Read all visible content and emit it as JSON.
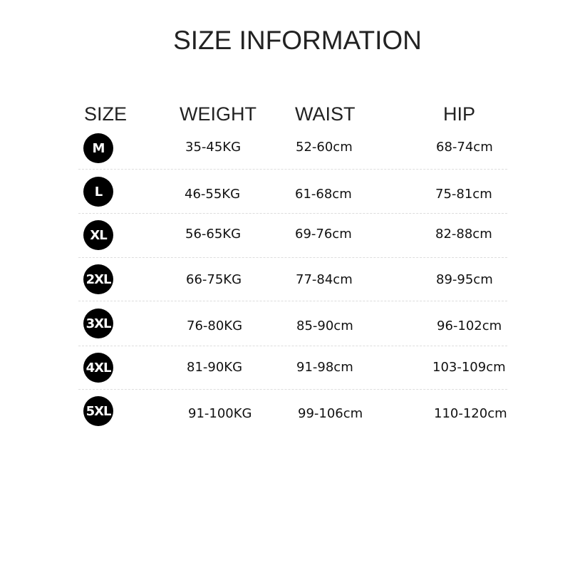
{
  "title": "SIZE INFORMATION",
  "headers": {
    "size": "SIZE",
    "weight": "WEIGHT",
    "waist": "WAIST",
    "hip": "HIP"
  },
  "rows": [
    {
      "size": "M",
      "weight": "35-45KG",
      "waist": "52-60cm",
      "hip": "68-74cm"
    },
    {
      "size": "L",
      "weight": "46-55KG",
      "waist": "61-68cm",
      "hip": "75-81cm"
    },
    {
      "size": "XL",
      "weight": "56-65KG",
      "waist": "69-76cm",
      "hip": "82-88cm"
    },
    {
      "size": "2XL",
      "weight": "66-75KG",
      "waist": "77-84cm",
      "hip": "89-95cm"
    },
    {
      "size": "3XL",
      "weight": "76-80KG",
      "waist": "85-90cm",
      "hip": "96-102cm"
    },
    {
      "size": "4XL",
      "weight": "81-90KG",
      "waist": "91-98cm",
      "hip": "103-109cm"
    },
    {
      "size": "5XL",
      "weight": "91-100KG",
      "waist": "99-106cm",
      "hip": "110-120cm"
    }
  ]
}
